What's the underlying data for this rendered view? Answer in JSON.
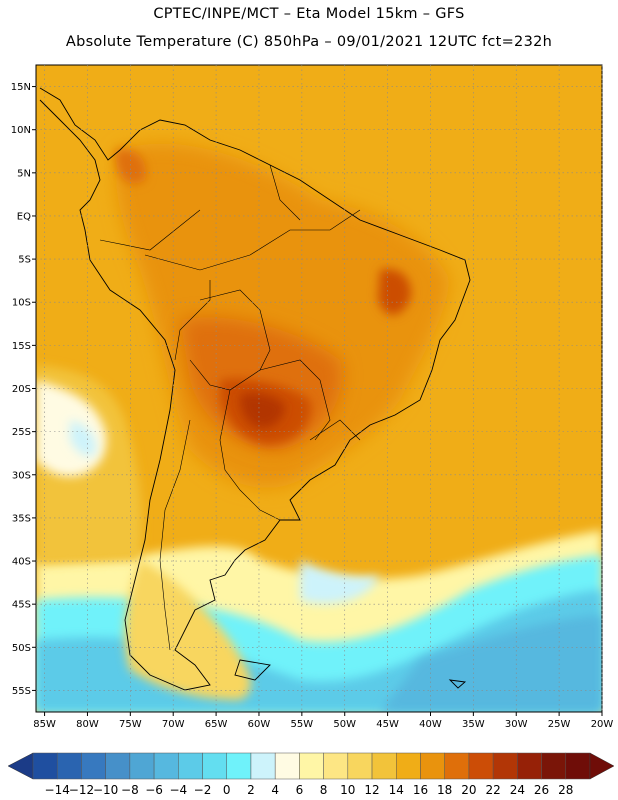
{
  "header": {
    "line1": "CPTEC/INPE/MCT –  Eta Model 15km – GFS",
    "line2": "Absolute Temperature (C) 850hPa – 09/01/2021 12UTC fct=232h"
  },
  "map": {
    "lat_ticks": [
      "15N",
      "10N",
      "5N",
      "EQ",
      "5S",
      "10S",
      "15S",
      "20S",
      "25S",
      "30S",
      "35S",
      "40S",
      "45S",
      "50S",
      "55S"
    ],
    "lon_ticks": [
      "85W",
      "80W",
      "75W",
      "70W",
      "65W",
      "60W",
      "55W",
      "50W",
      "45W",
      "40W",
      "35W",
      "30W",
      "25W",
      "20W"
    ],
    "lat_range": [
      17.5,
      -57.5
    ],
    "lon_range": [
      -86,
      -20
    ]
  },
  "colorbar": {
    "labels": [
      "-14",
      "-12",
      "-10",
      "-8",
      "-6",
      "-4",
      "-2",
      "0",
      "2",
      "4",
      "6",
      "8",
      "10",
      "12",
      "14",
      "16",
      "18",
      "20",
      "22",
      "24",
      "26",
      "28"
    ],
    "colors": [
      "#1f4fa0",
      "#2a64b0",
      "#3779bf",
      "#4690c9",
      "#4fa6d4",
      "#56b8df",
      "#5ccbe8",
      "#63def0",
      "#6ff2fa",
      "#cdf3fb",
      "#fffbe3",
      "#fff6a6",
      "#fde684",
      "#f8d65e",
      "#f2c33a",
      "#f0ad17",
      "#e9930d",
      "#df6f0a",
      "#cc4d06",
      "#b23606",
      "#962107",
      "#7a1508",
      "#6f0d08"
    ],
    "under_color": "#1b3b87",
    "over_color": "#6f0d08"
  }
}
